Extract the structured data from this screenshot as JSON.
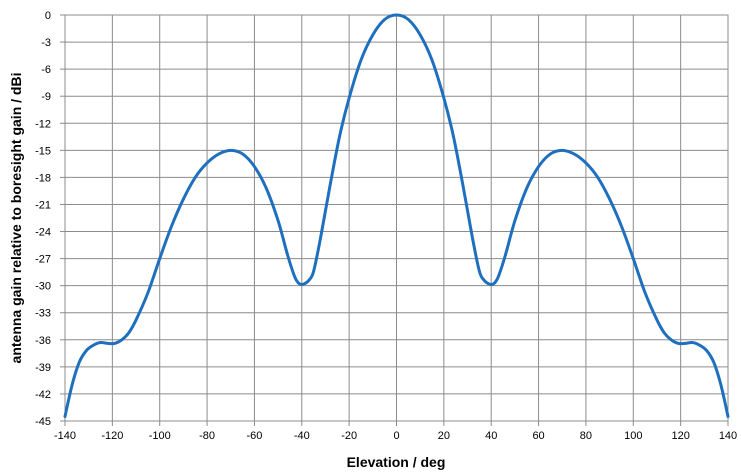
{
  "chart_data": {
    "type": "line",
    "title": "",
    "xlabel": "Elevation / deg",
    "ylabel": "antenna gain relative to boresight gain / dBi",
    "xlim": [
      -140,
      140
    ],
    "ylim": [
      -45,
      0
    ],
    "x_ticks": [
      -140,
      -120,
      -100,
      -80,
      -60,
      -40,
      -20,
      0,
      20,
      40,
      60,
      80,
      100,
      120,
      140
    ],
    "y_ticks": [
      0,
      -3,
      -6,
      -9,
      -12,
      -15,
      -18,
      -21,
      -24,
      -27,
      -30,
      -33,
      -36,
      -39,
      -42,
      -45
    ],
    "grid": true,
    "legend": "none",
    "series": [
      {
        "color": "#1f6fbf",
        "points": [
          [
            -140,
            -44.5
          ],
          [
            -137,
            -41.0
          ],
          [
            -134,
            -38.5
          ],
          [
            -131,
            -37.2
          ],
          [
            -128,
            -36.6
          ],
          [
            -125,
            -36.3
          ],
          [
            -122,
            -36.4
          ],
          [
            -119,
            -36.4
          ],
          [
            -116,
            -36.0
          ],
          [
            -113,
            -35.2
          ],
          [
            -110,
            -33.8
          ],
          [
            -105,
            -30.8
          ],
          [
            -100,
            -27.0
          ],
          [
            -95,
            -23.4
          ],
          [
            -90,
            -20.4
          ],
          [
            -85,
            -18.0
          ],
          [
            -80,
            -16.4
          ],
          [
            -75,
            -15.4
          ],
          [
            -70,
            -15.0
          ],
          [
            -65,
            -15.4
          ],
          [
            -60,
            -16.8
          ],
          [
            -55,
            -19.2
          ],
          [
            -50,
            -22.8
          ],
          [
            -46,
            -26.6
          ],
          [
            -43,
            -29.0
          ],
          [
            -41,
            -29.8
          ],
          [
            -39,
            -29.8
          ],
          [
            -37,
            -29.4
          ],
          [
            -35,
            -28.4
          ],
          [
            -32,
            -24.6
          ],
          [
            -28,
            -18.8
          ],
          [
            -24,
            -13.4
          ],
          [
            -20,
            -9.2
          ],
          [
            -15,
            -5.0
          ],
          [
            -10,
            -2.2
          ],
          [
            -5,
            -0.5
          ],
          [
            0,
            0.0
          ],
          [
            5,
            -0.5
          ],
          [
            10,
            -2.2
          ],
          [
            15,
            -5.0
          ],
          [
            20,
            -9.2
          ],
          [
            24,
            -13.4
          ],
          [
            28,
            -18.8
          ],
          [
            32,
            -24.6
          ],
          [
            35,
            -28.4
          ],
          [
            37,
            -29.4
          ],
          [
            39,
            -29.8
          ],
          [
            41,
            -29.8
          ],
          [
            43,
            -29.0
          ],
          [
            46,
            -26.6
          ],
          [
            50,
            -22.8
          ],
          [
            55,
            -19.2
          ],
          [
            60,
            -16.8
          ],
          [
            65,
            -15.4
          ],
          [
            70,
            -15.0
          ],
          [
            75,
            -15.4
          ],
          [
            80,
            -16.4
          ],
          [
            85,
            -18.0
          ],
          [
            90,
            -20.4
          ],
          [
            95,
            -23.4
          ],
          [
            100,
            -27.0
          ],
          [
            105,
            -30.8
          ],
          [
            110,
            -33.8
          ],
          [
            113,
            -35.2
          ],
          [
            116,
            -36.0
          ],
          [
            119,
            -36.4
          ],
          [
            122,
            -36.4
          ],
          [
            125,
            -36.3
          ],
          [
            128,
            -36.6
          ],
          [
            131,
            -37.2
          ],
          [
            134,
            -38.5
          ],
          [
            137,
            -41.0
          ],
          [
            140,
            -44.5
          ]
        ]
      }
    ]
  }
}
